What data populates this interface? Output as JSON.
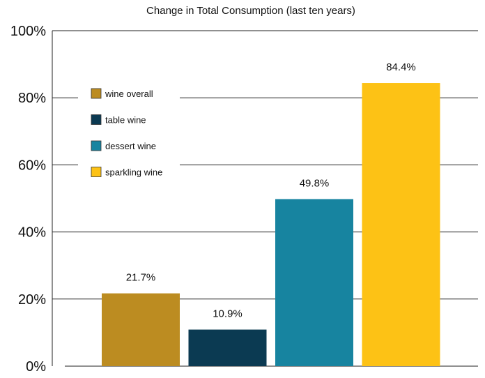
{
  "chart_data": {
    "type": "bar",
    "title": "Change in Total Consumption (last ten years)",
    "xlabel": "",
    "ylabel": "",
    "ylim": [
      0,
      100
    ],
    "yticks": [
      0,
      20,
      40,
      60,
      80,
      100
    ],
    "ytick_labels": [
      "0%",
      "20%",
      "40%",
      "60%",
      "80%",
      "100%"
    ],
    "grid": true,
    "legend_position": "upper-left",
    "series": [
      {
        "name": "wine overall",
        "value": 21.7,
        "label": "21.7%",
        "color": "#BC8C21"
      },
      {
        "name": "table wine",
        "value": 10.9,
        "label": "10.9%",
        "color": "#0B3A52"
      },
      {
        "name": "dessert wine",
        "value": 49.8,
        "label": "49.8%",
        "color": "#1784A0"
      },
      {
        "name": "sparkling wine",
        "value": 84.4,
        "label": "84.4%",
        "color": "#FDC215"
      }
    ]
  }
}
